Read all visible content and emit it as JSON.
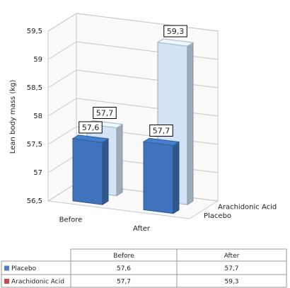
{
  "chart_data": {
    "type": "bar3d",
    "y_label": "Lean body mass (kg)",
    "categories": [
      "Before",
      "After"
    ],
    "series": [
      {
        "name": "Placebo",
        "color": "#3f74bd",
        "key_color": "#4f81bd",
        "values": [
          57.6,
          57.7
        ],
        "value_labels": [
          "57,6",
          "57,7"
        ]
      },
      {
        "name": "Arachidonic Acid",
        "color": "#d4e2f6",
        "key_color": "#c0504d",
        "values": [
          57.7,
          59.3
        ],
        "value_labels": [
          "57,7",
          "59,3"
        ]
      }
    ],
    "ylim": [
      56.5,
      59.5
    ],
    "yticks": [
      {
        "value": 56.5,
        "label": "56,5"
      },
      57,
      {
        "value": 57.5,
        "label": "57,5"
      },
      58,
      {
        "value": 58.5,
        "label": "58,5"
      },
      59,
      {
        "value": 59.5,
        "label": "59,5"
      }
    ],
    "grid": true
  }
}
